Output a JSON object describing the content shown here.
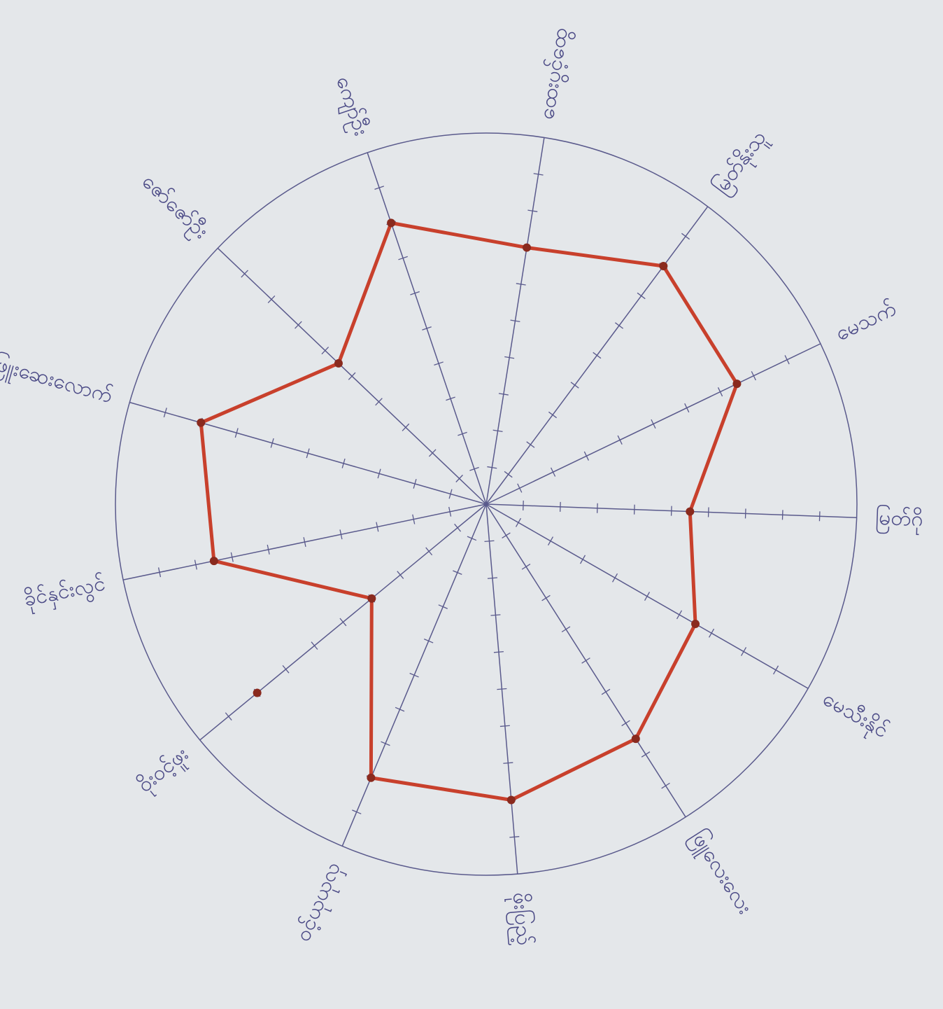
{
  "chart_data": {
    "type": "radar",
    "categories": [
      "ထေးပွင့်ထွေ",
      "မြတ်နိုးသူ",
      "မေသက်",
      "မြတ်ဂို",
      "မေသီးနိုင်",
      "ဖြူလေးလေး",
      "ဖိုးပြည့်",
      "ဝင့်ယုယုလှ",
      "ဝိုးဝင့်ဖူး",
      "ခိုင်နှင်းလွင်",
      "ဖြူးဆေးလောက်",
      "ဇော်ဇော်ဦး",
      "ကျော်ဦး"
    ],
    "series": [
      {
        "color": "#c8402c",
        "values": [
          7,
          8,
          7.5,
          5.5,
          6.5,
          7.5,
          8,
          8,
          4,
          7.5,
          8,
          5.5,
          8
        ]
      }
    ],
    "extra_points": [
      {
        "index": 8,
        "value": 8
      }
    ],
    "rlim": [
      0,
      10
    ],
    "rticks": [
      1,
      2,
      3,
      4,
      5,
      6,
      7,
      8,
      9
    ],
    "axis_color": "#5a5a8c"
  }
}
